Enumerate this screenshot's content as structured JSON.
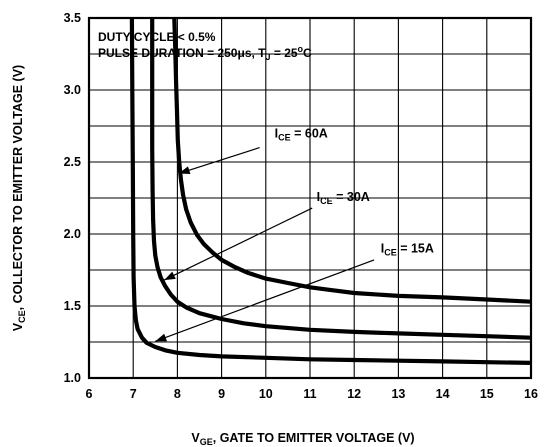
{
  "chart_data": {
    "type": "line",
    "title": "",
    "xlabel": {
      "main": "V",
      "sub": "GE",
      "rest": ", GATE TO EMITTER VOLTAGE (V)"
    },
    "ylabel": {
      "main": "V",
      "sub": "CE",
      "rest": ", COLLECTOR TO EMITTER VOLTAGE (V)"
    },
    "xlim": [
      6,
      16
    ],
    "ylim": [
      1.0,
      3.5
    ],
    "xticks": [
      "6",
      "7",
      "8",
      "9",
      "10",
      "11",
      "12",
      "13",
      "14",
      "15",
      "16"
    ],
    "yticks": [
      "1.0",
      "1.5",
      "2.0",
      "2.5",
      "3.0",
      "3.5"
    ],
    "grid": true,
    "conditions": [
      {
        "text": "DUTY CYCLE < 0.5%"
      },
      {
        "text": "PULSE DURATION = 250μs, T",
        "sub": "J",
        "tail": " = 25",
        "sup": "o",
        "end": "C"
      }
    ],
    "series": [
      {
        "name": "I_CE = 60A",
        "label": {
          "main": "I",
          "sub": "CE",
          "rest": " = 60A"
        },
        "points": [
          [
            7.93,
            3.5
          ],
          [
            7.95,
            3.3
          ],
          [
            7.97,
            3.05
          ],
          [
            7.99,
            2.85
          ],
          [
            8.01,
            2.65
          ],
          [
            8.04,
            2.5
          ],
          [
            8.08,
            2.38
          ],
          [
            8.13,
            2.27
          ],
          [
            8.2,
            2.17
          ],
          [
            8.3,
            2.08
          ],
          [
            8.45,
            1.99
          ],
          [
            8.6,
            1.93
          ],
          [
            8.8,
            1.87
          ],
          [
            9.0,
            1.82
          ],
          [
            9.3,
            1.77
          ],
          [
            9.6,
            1.73
          ],
          [
            10.0,
            1.69
          ],
          [
            10.5,
            1.66
          ],
          [
            11.0,
            1.63
          ],
          [
            11.5,
            1.61
          ],
          [
            12.0,
            1.59
          ],
          [
            13.0,
            1.57
          ],
          [
            14.0,
            1.56
          ],
          [
            15.0,
            1.545
          ],
          [
            16.0,
            1.53
          ]
        ]
      },
      {
        "name": "I_CE = 30A",
        "label": {
          "main": "I",
          "sub": "CE",
          "rest": " = 30A"
        },
        "points": [
          [
            7.43,
            3.5
          ],
          [
            7.43,
            3.2
          ],
          [
            7.43,
            2.9
          ],
          [
            7.43,
            2.6
          ],
          [
            7.44,
            2.3
          ],
          [
            7.45,
            2.1
          ],
          [
            7.47,
            1.95
          ],
          [
            7.5,
            1.85
          ],
          [
            7.55,
            1.77
          ],
          [
            7.62,
            1.7
          ],
          [
            7.72,
            1.64
          ],
          [
            7.85,
            1.58
          ],
          [
            8.0,
            1.53
          ],
          [
            8.2,
            1.49
          ],
          [
            8.5,
            1.45
          ],
          [
            9.0,
            1.41
          ],
          [
            9.5,
            1.38
          ],
          [
            10.0,
            1.36
          ],
          [
            11.0,
            1.335
          ],
          [
            12.0,
            1.32
          ],
          [
            13.0,
            1.31
          ],
          [
            14.0,
            1.3
          ],
          [
            15.0,
            1.29
          ],
          [
            16.0,
            1.28
          ]
        ]
      },
      {
        "name": "I_CE = 15A",
        "label": {
          "main": "I",
          "sub": "CE",
          "rest": " = 15A"
        },
        "points": [
          [
            6.97,
            3.5
          ],
          [
            6.98,
            3.0
          ],
          [
            6.99,
            2.5
          ],
          [
            7.0,
            2.0
          ],
          [
            7.01,
            1.7
          ],
          [
            7.03,
            1.5
          ],
          [
            7.06,
            1.4
          ],
          [
            7.1,
            1.34
          ],
          [
            7.2,
            1.28
          ],
          [
            7.3,
            1.245
          ],
          [
            7.5,
            1.215
          ],
          [
            7.75,
            1.19
          ],
          [
            8.0,
            1.175
          ],
          [
            8.5,
            1.16
          ],
          [
            9.0,
            1.15
          ],
          [
            10.0,
            1.14
          ],
          [
            11.0,
            1.13
          ],
          [
            12.0,
            1.125
          ],
          [
            13.0,
            1.12
          ],
          [
            14.0,
            1.115
          ],
          [
            15.0,
            1.11
          ],
          [
            16.0,
            1.105
          ]
        ]
      }
    ],
    "annotations": [
      {
        "series": 0,
        "text_at": [
          10.2,
          2.67
        ],
        "arrow_tail": [
          9.86,
          2.6
        ],
        "arrow_head": [
          8.03,
          2.42
        ]
      },
      {
        "series": 1,
        "text_at": [
          11.15,
          2.23
        ],
        "arrow_tail": [
          11.05,
          2.18
        ],
        "arrow_head": [
          7.7,
          1.68
        ]
      },
      {
        "series": 2,
        "text_at": [
          12.6,
          1.87
        ],
        "arrow_tail": [
          12.45,
          1.82
        ],
        "arrow_head": [
          7.5,
          1.255
        ]
      }
    ]
  }
}
